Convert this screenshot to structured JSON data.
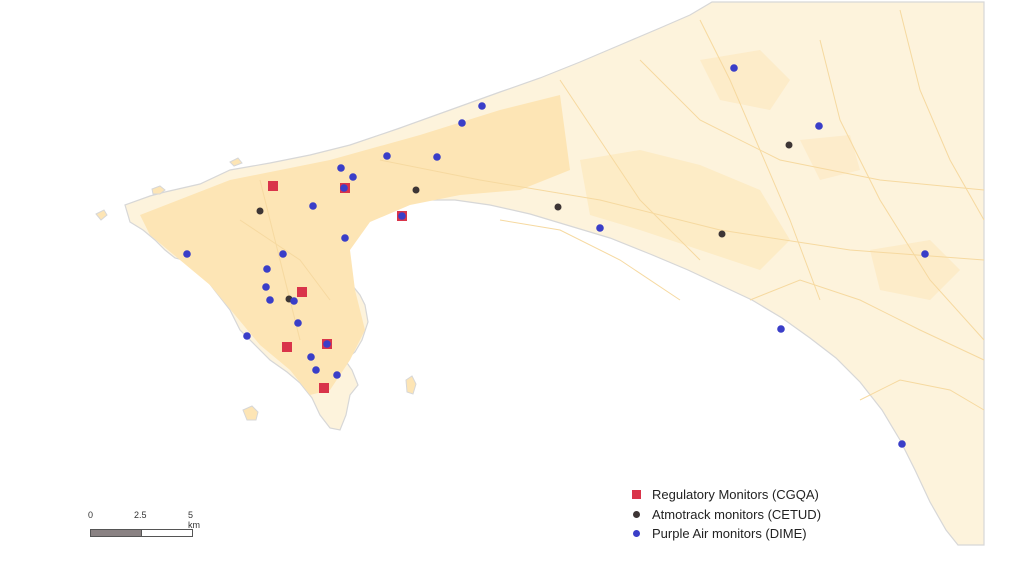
{
  "map": {
    "colors": {
      "land": "#fdf3dc",
      "urban": "#fde5b5",
      "road": "#f6d9a0",
      "coast": "#d7d7d7",
      "water": "#ffffff"
    },
    "regulatory_monitors": [
      {
        "id": "cgqa-1"
      },
      {
        "id": "cgqa-2"
      },
      {
        "id": "cgqa-3"
      },
      {
        "id": "cgqa-4"
      },
      {
        "id": "cgqa-5"
      },
      {
        "id": "cgqa-6"
      },
      {
        "id": "cgqa-7"
      }
    ],
    "atmotrack_monitors": [
      {
        "id": "cetud-1"
      },
      {
        "id": "cetud-2"
      },
      {
        "id": "cetud-3"
      },
      {
        "id": "cetud-4"
      },
      {
        "id": "cetud-5"
      },
      {
        "id": "cetud-6"
      }
    ],
    "purple_air_monitors": [
      {
        "id": "dime-1"
      },
      {
        "id": "dime-2"
      },
      {
        "id": "dime-3"
      },
      {
        "id": "dime-4"
      },
      {
        "id": "dime-5"
      },
      {
        "id": "dime-6"
      },
      {
        "id": "dime-7"
      },
      {
        "id": "dime-8"
      },
      {
        "id": "dime-9"
      },
      {
        "id": "dime-10"
      },
      {
        "id": "dime-11"
      },
      {
        "id": "dime-12"
      },
      {
        "id": "dime-13"
      },
      {
        "id": "dime-14"
      },
      {
        "id": "dime-15"
      },
      {
        "id": "dime-16"
      },
      {
        "id": "dime-17"
      },
      {
        "id": "dime-18"
      },
      {
        "id": "dime-19"
      },
      {
        "id": "dime-20"
      },
      {
        "id": "dime-21"
      },
      {
        "id": "dime-22"
      },
      {
        "id": "dime-23"
      },
      {
        "id": "dime-24"
      },
      {
        "id": "dime-25"
      },
      {
        "id": "dime-26"
      },
      {
        "id": "dime-27"
      },
      {
        "id": "dime-28"
      }
    ]
  },
  "legend": {
    "items": [
      {
        "label": "Regulatory Monitors (CGQA)",
        "color": "#d9344a",
        "symbol": "square"
      },
      {
        "label": "Atmotrack monitors (CETUD)",
        "color": "#3d3535",
        "symbol": "circle"
      },
      {
        "label": "Purple Air monitors (DIME)",
        "color": "#3a3ec8",
        "symbol": "circle"
      }
    ]
  },
  "scale_bar": {
    "ticks": [
      "0",
      "2.5",
      "5 km"
    ],
    "colors": {
      "dark": "#8a8283",
      "light": "#ffffff"
    }
  }
}
